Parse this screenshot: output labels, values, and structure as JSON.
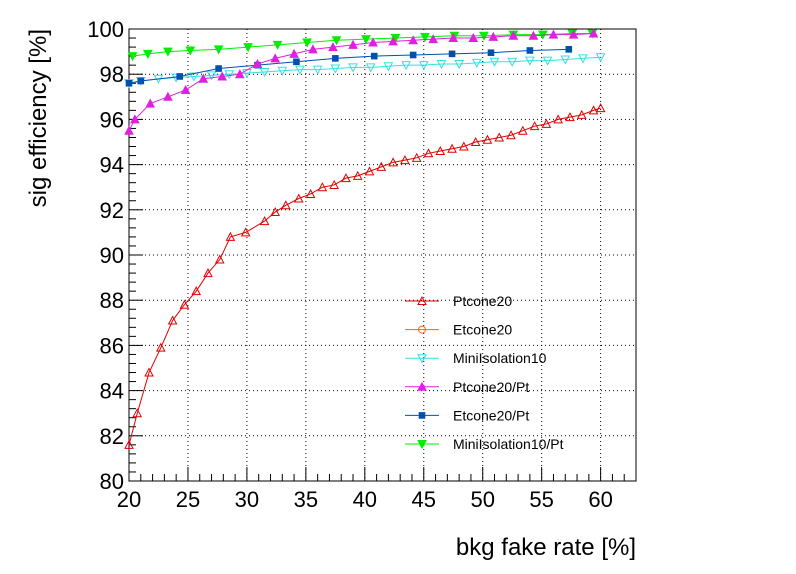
{
  "chart_data": {
    "type": "line",
    "title": "",
    "xlabel": "bkg fake rate [%]",
    "ylabel": "sig efficiency [%]",
    "xlim": [
      20,
      63
    ],
    "ylim": [
      80,
      100
    ],
    "x_ticks": [
      20,
      25,
      30,
      35,
      40,
      45,
      50,
      55,
      60
    ],
    "y_ticks": [
      80,
      82,
      84,
      86,
      88,
      90,
      92,
      94,
      96,
      98,
      100
    ],
    "grid": true,
    "legend_position": "bottom-right",
    "series": [
      {
        "name": "Ptcone20",
        "color": "#e00000",
        "marker": "triangle-up-open",
        "x": [
          20.0,
          20.7,
          21.7,
          22.7,
          23.7,
          24.7,
          25.7,
          26.7,
          27.7,
          28.6,
          29.9,
          31.5,
          32.4,
          33.3,
          34.4,
          35.4,
          36.4,
          37.4,
          38.4,
          39.4,
          40.4,
          41.4,
          42.4,
          43.4,
          44.4,
          45.4,
          46.4,
          47.4,
          48.4,
          49.4,
          50.4,
          51.4,
          52.4,
          53.4,
          54.4,
          55.4,
          56.4,
          57.4,
          58.4,
          59.4,
          60.0
        ],
        "y": [
          81.6,
          83.0,
          84.8,
          85.9,
          87.1,
          87.8,
          88.4,
          89.2,
          89.8,
          90.8,
          91.0,
          91.5,
          91.9,
          92.2,
          92.5,
          92.7,
          93.0,
          93.1,
          93.4,
          93.5,
          93.7,
          93.9,
          94.1,
          94.2,
          94.3,
          94.5,
          94.6,
          94.7,
          94.8,
          95.0,
          95.1,
          95.2,
          95.3,
          95.5,
          95.7,
          95.8,
          96.0,
          96.1,
          96.2,
          96.4,
          96.5
        ]
      },
      {
        "name": "Etcone20",
        "color": "#ff6600",
        "marker": "circle-open",
        "x": [],
        "y": []
      },
      {
        "name": "MiniIsolation10",
        "color": "#33e0e0",
        "marker": "triangle-down-open",
        "x": [
          20.0,
          21.0,
          22.5,
          24.0,
          25.5,
          27.0,
          28.5,
          30.0,
          31.5,
          33.0,
          34.5,
          36.0,
          37.5,
          39.0,
          40.5,
          42.0,
          43.5,
          45.0,
          46.5,
          48.0,
          49.5,
          51.0,
          52.5,
          54.0,
          55.5,
          57.0,
          58.5,
          60.0
        ],
        "y": [
          97.6,
          97.7,
          97.8,
          97.85,
          97.9,
          97.95,
          98.0,
          98.05,
          98.1,
          98.15,
          98.2,
          98.2,
          98.25,
          98.3,
          98.3,
          98.35,
          98.4,
          98.4,
          98.45,
          98.45,
          98.5,
          98.55,
          98.55,
          98.6,
          98.6,
          98.65,
          98.7,
          98.75
        ]
      },
      {
        "name": "Ptcone20/Pt",
        "color": "#e020e0",
        "marker": "triangle-up-filled",
        "x": [
          20.0,
          20.5,
          21.8,
          23.3,
          24.8,
          26.3,
          27.9,
          29.4,
          30.9,
          32.4,
          34.0,
          35.6,
          37.3,
          39.0,
          40.7,
          42.4,
          44.1,
          45.8,
          47.5,
          49.2,
          50.9,
          52.6,
          54.3,
          56.0,
          57.7,
          59.4
        ],
        "y": [
          95.5,
          96.0,
          96.7,
          97.0,
          97.3,
          97.8,
          97.9,
          98.0,
          98.45,
          98.7,
          98.9,
          99.1,
          99.2,
          99.3,
          99.4,
          99.45,
          99.5,
          99.55,
          99.6,
          99.6,
          99.65,
          99.7,
          99.7,
          99.75,
          99.75,
          99.8
        ]
      },
      {
        "name": "Etcone20/Pt",
        "color": "#0050b0",
        "marker": "square-filled",
        "x": [
          20.0,
          21.0,
          24.3,
          27.6,
          30.9,
          34.2,
          37.5,
          40.8,
          44.1,
          47.4,
          50.7,
          54.0,
          57.3
        ],
        "y": [
          97.6,
          97.7,
          97.9,
          98.25,
          98.4,
          98.55,
          98.7,
          98.8,
          98.85,
          98.9,
          98.95,
          99.05,
          99.1
        ]
      },
      {
        "name": "MiniIsolation10/Pt",
        "color": "#00ee00",
        "marker": "triangle-down-filled",
        "x": [
          20.3,
          21.6,
          23.3,
          25.2,
          27.6,
          30.1,
          32.6,
          35.1,
          37.6,
          40.1,
          42.6,
          45.1,
          47.6,
          50.1,
          52.6,
          55.1,
          57.6,
          59.3
        ],
        "y": [
          98.8,
          98.9,
          99.0,
          99.05,
          99.1,
          99.2,
          99.3,
          99.4,
          99.5,
          99.55,
          99.6,
          99.65,
          99.7,
          99.7,
          99.75,
          99.75,
          99.8,
          99.8
        ]
      }
    ]
  }
}
